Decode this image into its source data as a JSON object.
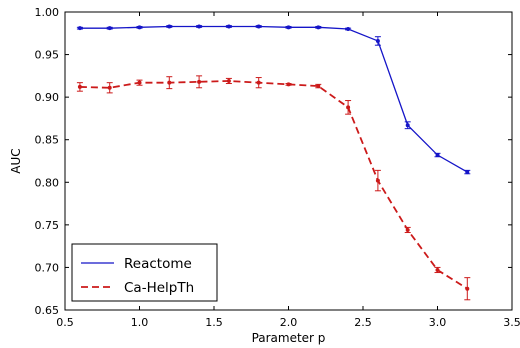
{
  "chart_data": {
    "type": "line",
    "xlabel": "Parameter p",
    "ylabel": "AUC",
    "xlim": [
      0.5,
      3.5
    ],
    "ylim": [
      0.65,
      1.0
    ],
    "xticks": [
      "0.5",
      "1.0",
      "1.5",
      "2.0",
      "2.5",
      "3.0",
      "3.5"
    ],
    "yticks": [
      "0.65",
      "0.70",
      "0.75",
      "0.80",
      "0.85",
      "0.90",
      "0.95",
      "1.00"
    ],
    "grid": false,
    "legend_position": "lower-left",
    "series": [
      {
        "name": "Reactome",
        "color": "#1515c8",
        "style": "solid",
        "x": [
          0.6,
          0.8,
          1.0,
          1.2,
          1.4,
          1.6,
          1.8,
          2.0,
          2.2,
          2.4,
          2.6,
          2.8,
          3.0,
          3.2
        ],
        "y": [
          0.981,
          0.981,
          0.982,
          0.983,
          0.983,
          0.983,
          0.983,
          0.982,
          0.982,
          0.98,
          0.966,
          0.867,
          0.832,
          0.812
        ],
        "err": [
          0.001,
          0.001,
          0.001,
          0.001,
          0.001,
          0.001,
          0.001,
          0.001,
          0.001,
          0.001,
          0.005,
          0.004,
          0.002,
          0.002
        ]
      },
      {
        "name": "Ca-HelpTh",
        "color": "#cc1a1a",
        "style": "dashed",
        "x": [
          0.6,
          0.8,
          1.0,
          1.2,
          1.4,
          1.6,
          1.8,
          2.0,
          2.2,
          2.4,
          2.6,
          2.8,
          3.0,
          3.2
        ],
        "y": [
          0.912,
          0.911,
          0.917,
          0.917,
          0.918,
          0.919,
          0.917,
          0.915,
          0.913,
          0.888,
          0.802,
          0.744,
          0.697,
          0.675
        ],
        "err": [
          0.005,
          0.006,
          0.003,
          0.007,
          0.007,
          0.003,
          0.006,
          0.001,
          0.002,
          0.008,
          0.012,
          0.003,
          0.003,
          0.013
        ]
      }
    ]
  }
}
